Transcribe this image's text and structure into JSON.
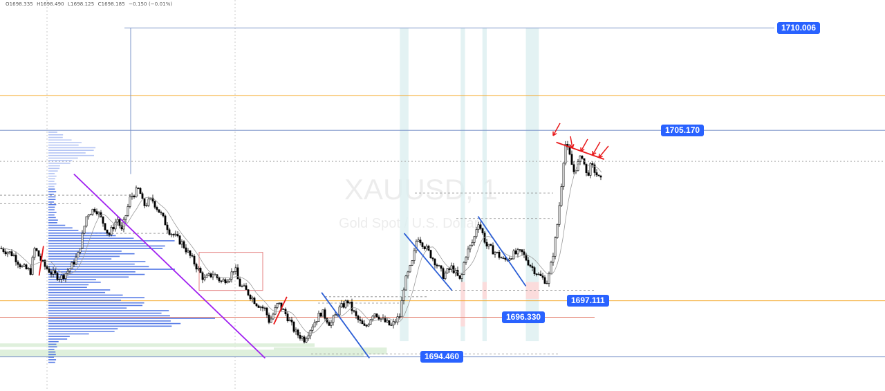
{
  "ohlc": {
    "open": "O1698.335",
    "high": "H1698.490",
    "low": "L1698.125",
    "close": "C1698.185",
    "change": "−0.150 (−0.01%)"
  },
  "watermark": {
    "symbol": "XAUUSD, 1",
    "description": "Gold Spot / U.S. Dollar"
  },
  "colors": {
    "candle": "#000000",
    "price_label": "#2962ff",
    "orange_line": "#f5a623",
    "blue_line": "#7b94c9",
    "volume_profile": "#2f5ce0",
    "trend_purple": "#a020f0",
    "trend_blue": "#2c5fd6",
    "trend_red": "#e8191b",
    "teal_zone": "#dceff0",
    "pink_zone": "#fbdcdc",
    "green_zone": "#dff0dc"
  },
  "chart_data": {
    "type": "candlestick",
    "symbol": "XAUUSD",
    "timeframe": "1",
    "ylim": [
      1693.5,
      1711.0
    ],
    "x_index_range": [
      0,
      140
    ],
    "price_labels": [
      {
        "name": "resistance-1710",
        "value": 1710.006,
        "text": "1710.006"
      },
      {
        "name": "resistance-1705",
        "value": 1705.17,
        "text": "1705.170"
      },
      {
        "name": "level-1697",
        "value": 1697.111,
        "text": "1697.111"
      },
      {
        "name": "level-1696",
        "value": 1696.33,
        "text": "1696.330"
      },
      {
        "name": "support-1694",
        "value": 1694.46,
        "text": "1694.460"
      }
    ],
    "horizontal_levels": [
      {
        "value": 1706.8,
        "style": "orange"
      },
      {
        "value": 1705.17,
        "style": "blue"
      },
      {
        "value": 1703.7,
        "style": "gray-dotted"
      },
      {
        "value": 1697.111,
        "style": "orange"
      },
      {
        "value": 1696.33,
        "style": "salmon"
      },
      {
        "value": 1694.46,
        "style": "blue"
      }
    ],
    "close_path": [
      [
        0,
        1699.6
      ],
      [
        3,
        1699.3
      ],
      [
        5,
        1698.7
      ],
      [
        7,
        1698.5
      ],
      [
        8,
        1699.6
      ],
      [
        10,
        1698.8
      ],
      [
        12,
        1698.4
      ],
      [
        14,
        1698.2
      ],
      [
        16,
        1698.6
      ],
      [
        18,
        1699.3
      ],
      [
        20,
        1701.2
      ],
      [
        22,
        1701.5
      ],
      [
        24,
        1700.7
      ],
      [
        25,
        1700.2
      ],
      [
        27,
        1701.0
      ],
      [
        28,
        1700.4
      ],
      [
        30,
        1702.0
      ],
      [
        32,
        1702.4
      ],
      [
        33,
        1701.6
      ],
      [
        35,
        1701.9
      ],
      [
        37,
        1701.2
      ],
      [
        39,
        1700.4
      ],
      [
        42,
        1699.8
      ],
      [
        45,
        1698.8
      ],
      [
        47,
        1698.1
      ],
      [
        49,
        1698.4
      ],
      [
        51,
        1698.0
      ],
      [
        53,
        1698.3
      ],
      [
        54,
        1698.7
      ],
      [
        55,
        1697.9
      ],
      [
        57,
        1697.5
      ],
      [
        59,
        1697.0
      ],
      [
        61,
        1696.7
      ],
      [
        62,
        1696.1
      ],
      [
        64,
        1697.0
      ],
      [
        66,
        1696.4
      ],
      [
        68,
        1695.6
      ],
      [
        70,
        1695.3
      ],
      [
        72,
        1696.0
      ],
      [
        74,
        1696.6
      ],
      [
        76,
        1696.0
      ],
      [
        78,
        1696.7
      ],
      [
        80,
        1697.1
      ],
      [
        82,
        1696.3
      ],
      [
        84,
        1695.8
      ],
      [
        86,
        1696.6
      ],
      [
        88,
        1696.2
      ],
      [
        90,
        1695.9
      ],
      [
        92,
        1696.4
      ],
      [
        93,
        1697.9
      ],
      [
        95,
        1699.0
      ],
      [
        96,
        1700.2
      ],
      [
        98,
        1699.6
      ],
      [
        100,
        1699.0
      ],
      [
        102,
        1698.3
      ],
      [
        104,
        1698.7
      ],
      [
        106,
        1698.0
      ],
      [
        107,
        1699.2
      ],
      [
        109,
        1700.0
      ],
      [
        110,
        1700.9
      ],
      [
        112,
        1699.7
      ],
      [
        114,
        1699.4
      ],
      [
        116,
        1699.0
      ],
      [
        118,
        1699.3
      ],
      [
        120,
        1699.4
      ],
      [
        122,
        1698.8
      ],
      [
        124,
        1698.3
      ],
      [
        126,
        1698.0
      ],
      [
        127,
        1699.0
      ],
      [
        128,
        1700.3
      ],
      [
        129,
        1702.2
      ],
      [
        130,
        1704.6
      ],
      [
        131,
        1704.0
      ],
      [
        132,
        1703.2
      ],
      [
        133,
        1703.6
      ],
      [
        134,
        1704.0
      ],
      [
        135,
        1703.0
      ],
      [
        136,
        1703.5
      ],
      [
        137,
        1703.2
      ],
      [
        138,
        1702.8
      ]
    ],
    "volume_profile": {
      "price_range": [
        1694.2,
        1705.2
      ],
      "bins": 90,
      "peaks": [
        {
          "price": 1699.8,
          "width": 0.8
        },
        {
          "price": 1696.2,
          "width": 1.0
        },
        {
          "price": 1698.6,
          "width": 0.75
        },
        {
          "price": 1704.2,
          "width": 0.28
        },
        {
          "price": 1697.2,
          "width": 0.55
        }
      ]
    },
    "trend_lines": [
      {
        "color": "purple",
        "from": [
          17,
          1703.1
        ],
        "to": [
          61,
          1694.4
        ]
      },
      {
        "color": "blue",
        "from": [
          74,
          1697.5
        ],
        "to": [
          85,
          1694.4
        ]
      },
      {
        "color": "blue",
        "from": [
          93,
          1700.3
        ],
        "to": [
          104,
          1697.6
        ]
      },
      {
        "color": "blue",
        "from": [
          110,
          1701.1
        ],
        "to": [
          121,
          1697.8
        ]
      },
      {
        "color": "red",
        "from": [
          128,
          1704.6
        ],
        "to": [
          139,
          1703.8
        ]
      }
    ],
    "teal_zones": [
      [
        92,
        94
      ],
      [
        106,
        107
      ],
      [
        111,
        112
      ],
      [
        121,
        124
      ]
    ],
    "pink_zones": [
      [
        106,
        107
      ],
      [
        111,
        112
      ],
      [
        121,
        124
      ]
    ],
    "green_zones": [
      [
        63,
        89
      ]
    ]
  }
}
